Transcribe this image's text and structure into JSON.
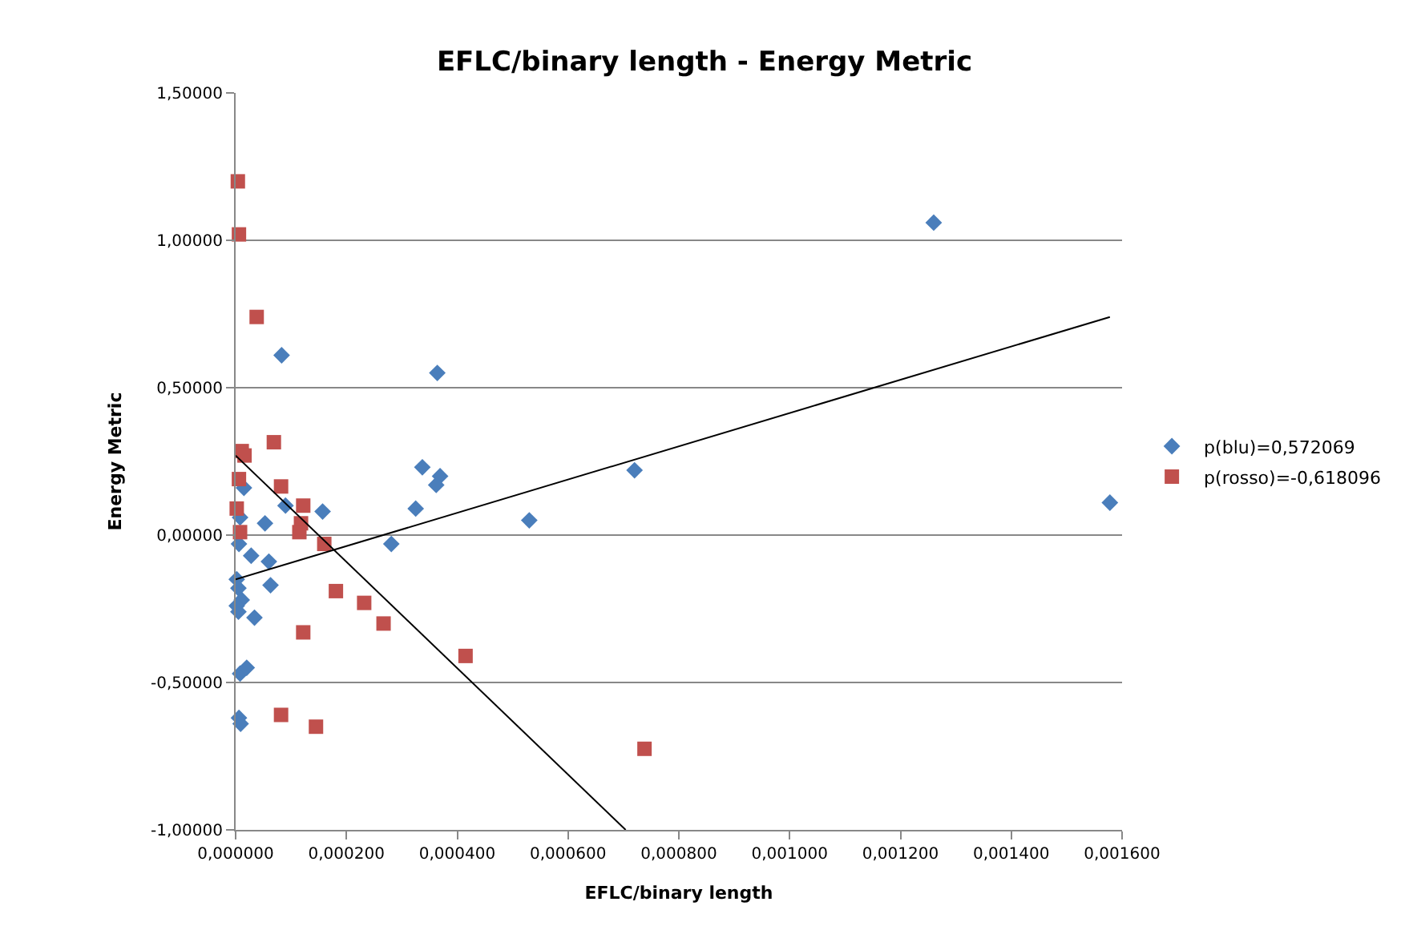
{
  "chart_data": {
    "type": "scatter",
    "title": "EFLC/binary length - Energy Metric",
    "xlabel": "EFLC/binary length",
    "ylabel": "Energy Metric",
    "xlim": [
      0,
      0.0016
    ],
    "ylim": [
      -1,
      1.5
    ],
    "xticks": [
      {
        "value": 0,
        "label": "0,000000"
      },
      {
        "value": 0.0002,
        "label": "0,000200"
      },
      {
        "value": 0.0004,
        "label": "0,000400"
      },
      {
        "value": 0.0006,
        "label": "0,000600"
      },
      {
        "value": 0.0008,
        "label": "0,000800"
      },
      {
        "value": 0.001,
        "label": "0,001000"
      },
      {
        "value": 0.0012,
        "label": "0,001200"
      },
      {
        "value": 0.0014,
        "label": "0,001400"
      },
      {
        "value": 0.0016,
        "label": "0,001600"
      }
    ],
    "yticks": [
      {
        "value": -1,
        "label": "-1,00000"
      },
      {
        "value": -0.5,
        "label": "-0,50000"
      },
      {
        "value": 0,
        "label": "0,00000"
      },
      {
        "value": 0.5,
        "label": "0,50000"
      },
      {
        "value": 1,
        "label": "1,00000"
      },
      {
        "value": 1.5,
        "label": "1,50000"
      }
    ],
    "grid": "y",
    "legend": "right",
    "series": [
      {
        "name": "p(blu)=0,572069",
        "color": "#4a7ebb",
        "marker": "diamond",
        "x": [
          8.3e-05,
          0.000364,
          0.00126,
          0.001578,
          0.00072,
          0.000337,
          0.000369,
          0.000362,
          0.000325,
          0.00053,
          0.000281,
          1.5e-05,
          8e-06,
          6e-06,
          2.8e-05,
          5.3e-05,
          6e-05,
          9e-05,
          0.000157,
          6.3e-05,
          2e-06,
          5e-06,
          1.1e-05,
          2e-06,
          5e-06,
          3.4e-05,
          8e-06,
          2e-05,
          6e-06,
          9e-06
        ],
        "values": [
          0.61,
          0.55,
          1.06,
          0.11,
          0.22,
          0.23,
          0.2,
          0.17,
          0.09,
          0.05,
          -0.03,
          0.16,
          0.06,
          -0.03,
          -0.07,
          0.04,
          -0.09,
          0.1,
          0.08,
          -0.17,
          -0.15,
          -0.18,
          -0.22,
          -0.24,
          -0.26,
          -0.28,
          -0.47,
          -0.45,
          -0.62,
          -0.64
        ]
      },
      {
        "name": "p(rosso)=-0,618096",
        "color": "#c0504d",
        "marker": "square",
        "x": [
          4e-06,
          6e-06,
          3.8e-05,
          6.9e-05,
          1.1e-05,
          1.6e-05,
          6e-06,
          8.2e-05,
          2e-06,
          0.000122,
          0.000118,
          0.000115,
          8e-06,
          0.00016,
          0.000181,
          0.000232,
          0.000267,
          0.000122,
          0.000415,
          8.2e-05,
          0.000145,
          0.000738
        ],
        "values": [
          1.2,
          1.02,
          0.74,
          0.315,
          0.285,
          0.27,
          0.19,
          0.165,
          0.09,
          0.1,
          0.04,
          0.01,
          0.01,
          -0.03,
          -0.19,
          -0.23,
          -0.3,
          -0.33,
          -0.41,
          -0.61,
          -0.65,
          -0.725
        ]
      },
      {
        "type": "line",
        "color": "#000000",
        "x": [
          0,
          0.001578
        ],
        "values": [
          -0.15,
          0.74
        ]
      },
      {
        "type": "line",
        "color": "#000000",
        "x": [
          0,
          0.000704
        ],
        "values": [
          0.27,
          -1.0
        ]
      }
    ]
  }
}
